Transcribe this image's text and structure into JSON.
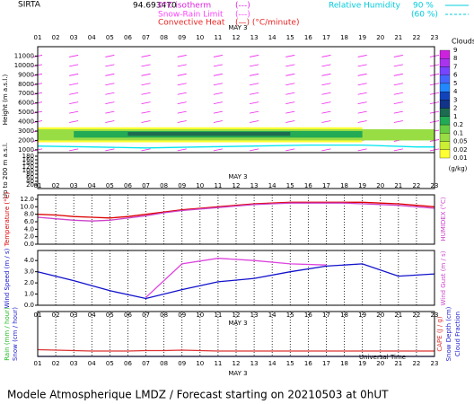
{
  "header": {
    "station": "SIRTA",
    "coords": "94.693470",
    "iso": "0°C isotherm",
    "iso_sym": "(---)",
    "snow": "Snow-Rain Limit",
    "snow_sym": "(---)",
    "conv": "Convective Heat",
    "conv_sym": "(—) (°C/minute)",
    "rh": "Relative Humidity",
    "rh90": "90 %",
    "rh60": "(60 %)"
  },
  "time": {
    "date": "MAY  3",
    "xlabel": "Universal Time",
    "hours": [
      "01",
      "02",
      "03",
      "04",
      "05",
      "06",
      "07",
      "08",
      "09",
      "10",
      "11",
      "12",
      "13",
      "14",
      "15",
      "16",
      "17",
      "18",
      "19",
      "20",
      "21",
      "22",
      "23"
    ]
  },
  "footer": "Modele Atmospherique LMDZ / Forecast starting on 20210503 at 0hUT",
  "chart_data": [
    {
      "type": "clouds",
      "xlim": [
        1,
        23
      ],
      "ylabel": "Height (m a.s.l.)",
      "y2label": "Up to 200 m a.s.l.",
      "ylim": [
        700,
        12000
      ],
      "yticks": [
        1000,
        2000,
        3000,
        4000,
        5000,
        6000,
        7000,
        8000,
        9000,
        10000,
        11000
      ],
      "y2lim": [
        0,
        200
      ],
      "y2ticks": [
        20,
        40,
        60,
        80,
        100,
        120,
        140,
        160,
        180
      ],
      "layers": [
        {
          "color": "#ffff33",
          "x": [
            1,
            19
          ],
          "base": 1800,
          "top": 3400
        },
        {
          "color": "#99dd44",
          "x": [
            1,
            23
          ],
          "base": 2000,
          "top": 3200
        },
        {
          "color": "#22aa55",
          "x": [
            3,
            19
          ],
          "base": 2300,
          "top": 3000
        },
        {
          "color": "#1d6b50",
          "x": [
            6,
            15
          ],
          "base": 2500,
          "top": 2900
        }
      ],
      "humidity": {
        "color": "#00e5ee",
        "x": [
          1,
          4,
          7,
          10,
          13,
          16,
          19,
          22,
          23
        ],
        "values": [
          1400,
          1300,
          1200,
          1300,
          1400,
          1500,
          1500,
          1300,
          1300
        ]
      },
      "colorbar": {
        "title": "Clouds",
        "unit": "(g/kg)",
        "ticks": [
          9,
          8,
          7,
          6,
          5,
          4,
          3,
          2,
          1,
          0.2,
          0.1,
          0.05,
          0.02,
          0.01
        ],
        "colors": [
          "#cc22dd",
          "#aa33ee",
          "#7744ff",
          "#4466ff",
          "#2288ff",
          "#1144bb",
          "#113388",
          "#1d6b50",
          "#22aa55",
          "#66cc44",
          "#99dd44",
          "#ccee33",
          "#ffff33"
        ]
      }
    },
    {
      "type": "line",
      "xlim": [
        1,
        23
      ],
      "ylabel": "Temperature (°C)",
      "y2label": "HUMIDEX (°C)",
      "ylim": [
        0,
        13.2
      ],
      "yticks": [
        {
          "value": 0,
          "label": "0.0"
        },
        {
          "value": 2,
          "label": "2.0"
        },
        {
          "value": 4,
          "label": "4.0"
        },
        {
          "value": 6,
          "label": "6.0"
        },
        {
          "value": 8,
          "label": "8.0"
        },
        {
          "value": 10,
          "label": "10.0"
        },
        {
          "value": 12,
          "label": "12.0"
        }
      ],
      "series": [
        {
          "color": "#dd0000",
          "values": [
            8.0,
            7.8,
            7.4,
            7.2,
            7.0,
            7.4,
            8.0,
            8.6,
            9.2,
            9.6,
            10.0,
            10.4,
            10.8,
            11.0,
            11.2,
            11.2,
            11.2,
            11.2,
            11.2,
            11.0,
            10.8,
            10.4,
            10.0
          ]
        },
        {
          "color": "#cc44cc",
          "values": [
            7.2,
            6.8,
            6.4,
            6.2,
            6.4,
            7.0,
            7.6,
            8.4,
            9.0,
            9.4,
            9.8,
            10.2,
            10.6,
            10.8,
            11.0,
            11.0,
            11.0,
            11.0,
            10.8,
            10.6,
            10.4,
            10.0,
            9.6
          ]
        }
      ]
    },
    {
      "type": "line",
      "xlim": [
        1,
        23
      ],
      "ylabel": "Wind Speed (m / s)",
      "y2label": "Wind Gust (m / s)",
      "ylim": [
        0,
        4.9
      ],
      "yticks": [
        {
          "value": 0,
          "label": "0.0"
        },
        {
          "value": 1,
          "label": "1.0"
        },
        {
          "value": 2,
          "label": "2.0"
        },
        {
          "value": 3,
          "label": "3.0"
        },
        {
          "value": 4,
          "label": "4.0"
        }
      ],
      "series": [
        {
          "color": "#dd44dd",
          "x": [
            7,
            9,
            11,
            13,
            15,
            17
          ],
          "values": [
            0.7,
            3.7,
            4.2,
            4.0,
            3.7,
            3.6
          ]
        },
        {
          "color": "#1111cc",
          "x": [
            1,
            3,
            5,
            7,
            9,
            11,
            13,
            15,
            17,
            19,
            21,
            23
          ],
          "values": [
            3.0,
            2.2,
            1.3,
            0.6,
            1.4,
            2.1,
            2.4,
            3.0,
            3.5,
            3.7,
            2.6,
            2.8
          ]
        }
      ]
    },
    {
      "type": "line",
      "xlim": [
        1,
        23
      ],
      "ylabel": "Rain (mm / hour)",
      "ylabel2": "Snow (cm / hour)",
      "y2label": "CAPE (J / g)",
      "y2label2": "Snow Depth (cm)",
      "y2label3": "Cloud Fraction",
      "ylim": [
        0,
        1
      ],
      "series": [
        {
          "color": "#dd3333",
          "values": [
            0.15,
            0.14,
            0.13,
            0.12,
            0.12,
            0.12,
            0.13,
            0.13,
            0.14,
            0.13,
            0.12,
            0.12,
            0.12,
            0.12,
            0.12,
            0.12,
            0.12,
            0.12,
            0.12,
            0.12,
            0.12,
            0.12,
            0.12
          ]
        },
        {
          "color": "#2222cc",
          "values": [
            0,
            0,
            0,
            0,
            0,
            0,
            0,
            0,
            0,
            0,
            0,
            0,
            0,
            0,
            0,
            0,
            0,
            0,
            0,
            0,
            0,
            0,
            0
          ]
        }
      ]
    }
  ]
}
